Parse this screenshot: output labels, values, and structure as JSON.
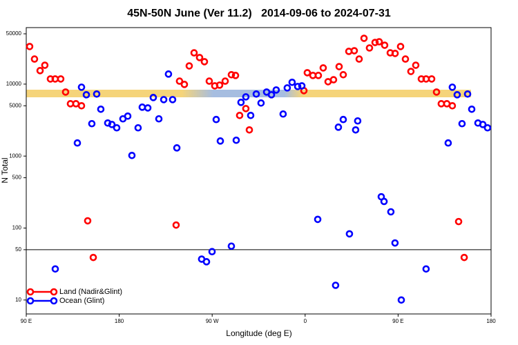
{
  "chart_data": {
    "type": "scatter",
    "title": "45N-50N June (Ver 11.2)   2014-09-06 to 2024-07-31",
    "x_label": "Longitude (deg E)",
    "y_label": "N Total",
    "log_scale_y": true,
    "xlim": [
      90,
      540
    ],
    "xticks": [
      {
        "value": 90,
        "label": "90 E"
      },
      180,
      {
        "value": 270,
        "label": "90 W"
      },
      {
        "value": 360,
        "label": "0"
      },
      {
        "value": 450,
        "label": "90 E"
      },
      {
        "value": 540,
        "label": "180"
      }
    ],
    "ylim": [
      6.4,
      61000
    ],
    "yticks": [
      10,
      50,
      100,
      500,
      1000,
      5000,
      10000,
      50000
    ],
    "hline": 50,
    "legend": "bottom-left",
    "series": [
      {
        "name": "Land (Nadir&Glint)",
        "color": "#ff0000",
        "x": [
          93.3,
          98,
          103.4,
          108,
          113.4,
          118,
          123.4,
          128.1,
          132.8,
          138.1,
          143.5,
          149.5,
          154.9,
          235.1,
          238.4,
          243.1,
          247.8,
          252.5,
          257.8,
          262.5,
          267.2,
          272.5,
          277.2,
          282.6,
          288.6,
          292.6,
          296.6,
          302.6,
          306,
          358.8,
          362.1,
          367.5,
          372.8,
          377.5,
          382.2,
          387.5,
          392.9,
          396.9,
          402.3,
          407.6,
          412.3,
          417,
          422.3,
          427.7,
          431.7,
          437,
          442.4,
          447.1,
          452.4,
          457.1,
          462.4,
          467.1,
          472.5,
          477.1,
          482.5,
          487.2,
          491.8,
          497.2,
          502.5,
          508.6,
          514
        ],
        "values": [
          33300,
          22300,
          15400,
          18300,
          11800,
          11800,
          11800,
          7760,
          5340,
          5340,
          5000,
          126,
          39,
          110,
          11000,
          9900,
          17900,
          27200,
          23400,
          20500,
          11000,
          9460,
          9680,
          11000,
          13500,
          13200,
          3670,
          4570,
          2310,
          8110,
          14400,
          13200,
          13200,
          16800,
          10800,
          11500,
          17500,
          13500,
          28500,
          29100,
          22300,
          43300,
          31800,
          37900,
          38800,
          34700,
          27200,
          26700,
          33300,
          22300,
          15000,
          18300,
          11800,
          11800,
          11800,
          7760,
          5340,
          5340,
          5000,
          123,
          39
        ]
      },
      {
        "name": "Ocean (Glint)",
        "color": "#0000ff",
        "x": [
          118.1,
          139.5,
          143.5,
          148.2,
          153.5,
          158.2,
          162.2,
          168.9,
          172.9,
          177.6,
          183.6,
          188.3,
          192.3,
          198.3,
          202.3,
          207.7,
          213,
          218.4,
          223.1,
          227.7,
          231.7,
          235.8,
          259.8,
          264.5,
          269.9,
          273.9,
          277.9,
          288.6,
          293.3,
          297.9,
          302.6,
          307.3,
          312.7,
          317.3,
          322.7,
          327.4,
          332,
          338.7,
          342.7,
          347.4,
          352.8,
          356.8,
          372.2,
          389.5,
          392.2,
          396.9,
          402.9,
          408.9,
          410.9,
          433.7,
          436.4,
          443,
          447,
          453.1,
          477.1,
          498.5,
          502.5,
          507.2,
          511.9,
          517.3,
          521.3,
          527.3,
          532,
          536.6
        ],
        "values": [
          27,
          1520,
          9060,
          7110,
          2820,
          7280,
          4480,
          2880,
          2750,
          2470,
          3290,
          3590,
          1020,
          2470,
          4780,
          4670,
          6510,
          3290,
          6090,
          13800,
          6090,
          1300,
          37,
          34,
          47,
          3220,
          1620,
          56,
          1660,
          5580,
          6650,
          3670,
          7280,
          5460,
          7760,
          7110,
          8290,
          3840,
          8860,
          10600,
          9260,
          9460,
          132,
          16,
          2520,
          3220,
          83,
          2310,
          3080,
          272,
          234,
          168,
          62,
          10,
          27,
          1520,
          9060,
          7110,
          2820,
          7280,
          4480,
          2880,
          2750,
          2470
        ]
      }
    ]
  }
}
